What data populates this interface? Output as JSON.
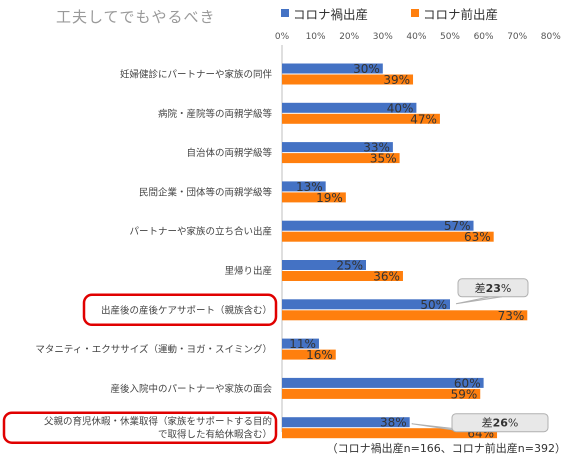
{
  "chart_data": {
    "type": "bar",
    "title": "工夫してでもやるべき",
    "orientation": "horizontal",
    "categories": [
      "妊婦健診にパートナーや家族の同伴",
      "病院・産院等の両親学級等",
      "自治体の両親学級等",
      "民間企業・団体等の両親学級等",
      "パートナーや家族の立ち合い出産",
      "里帰り出産",
      "出産後の産後ケアサポート（親族含む）",
      "マタニティ・エクササイズ（運動・ヨガ・スイミング）",
      "産後入院中のパートナーや家族の面会",
      "父親の育児休暇・休業取得（家族をサポートする目的で取得した有給休暇含む）"
    ],
    "series": [
      {
        "name": "コロナ禍出産",
        "color": "#4472C4",
        "values": [
          30,
          40,
          33,
          13,
          57,
          25,
          50,
          11,
          60,
          38
        ],
        "labels": [
          "30%",
          "40%",
          "33%",
          "13%",
          "57%",
          "25%",
          "50%",
          "11%",
          "60%",
          "38%"
        ]
      },
      {
        "name": "コロナ前出産",
        "color": "#FF7F0E",
        "values": [
          39,
          47,
          35,
          19,
          63,
          36,
          73,
          16,
          59,
          64
        ],
        "labels": [
          "39%",
          "47%",
          "35%",
          "19%",
          "63%",
          "36%",
          "73%",
          "16%",
          "59%",
          "64%"
        ]
      }
    ],
    "xlim": [
      0,
      80
    ],
    "xticks": [
      "0%",
      "10%",
      "20%",
      "30%",
      "40%",
      "50%",
      "60%",
      "70%",
      "80%"
    ],
    "legend_position": "top",
    "highlighted_categories": [
      6,
      9
    ],
    "highlight_color": "#E00000",
    "callouts": [
      {
        "category": 6,
        "prefix": "差",
        "value": "23",
        "suffix": "%"
      },
      {
        "category": 9,
        "prefix": "差",
        "value": "26",
        "suffix": "%"
      }
    ],
    "footnote": "（コロナ禍出産n=166、コロナ前出産n=392）"
  }
}
